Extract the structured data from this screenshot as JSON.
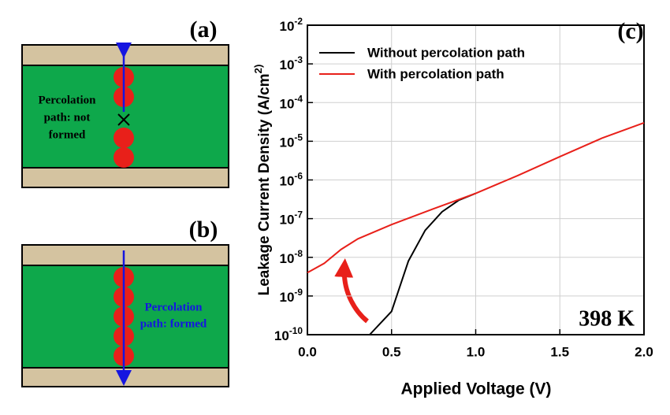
{
  "diagrams": {
    "a": {
      "label": "(a)",
      "text": [
        "Percolation",
        "path: not",
        "formed"
      ]
    },
    "b": {
      "label": "(b)",
      "text": [
        "Percolation",
        "path: formed"
      ]
    }
  },
  "chart_data": {
    "type": "line",
    "panel_label": "(c)",
    "annotation": "398 K",
    "x_label": "Applied Voltage (V)",
    "y_label": "Leakage Current Density (A/cm^2)",
    "log_y": true,
    "grid": true,
    "legend": "top",
    "xlim": [
      0,
      2
    ],
    "xticks": [
      {
        "value": 0,
        "label": "0.0"
      },
      0.5,
      {
        "value": 1,
        "label": "1.0"
      },
      1.5,
      {
        "value": 2,
        "label": "2.0"
      }
    ],
    "ylim": [
      1e-10,
      0.01
    ],
    "yticks": [
      {
        "value": 1e-10,
        "label": "10^-10"
      },
      {
        "value": 1e-09,
        "label": "10^-9"
      },
      {
        "value": 1e-08,
        "label": "10^-8"
      },
      {
        "value": 1e-07,
        "label": "10^-7"
      },
      {
        "value": 1e-06,
        "label": "10^-6"
      },
      {
        "value": 1e-05,
        "label": "10^-5"
      },
      {
        "value": 0.0001,
        "label": "10^-4"
      },
      {
        "value": 0.001,
        "label": "10^-3"
      },
      {
        "value": 0.01,
        "label": "10^-2"
      }
    ],
    "series": [
      {
        "name": "Without percolation path",
        "color": "#000000",
        "x": [
          0.37,
          0.5,
          0.6,
          0.7,
          0.8,
          0.9,
          1.0
        ],
        "values": [
          1e-10,
          4e-10,
          8e-09,
          5e-08,
          1.5e-07,
          3e-07,
          4.5e-07
        ]
      },
      {
        "name": "With percolation path",
        "color": "#e8201a",
        "x": [
          0,
          0.1,
          0.2,
          0.3,
          0.5,
          0.75,
          1.0,
          1.25,
          1.5,
          1.75,
          2.0
        ],
        "values": [
          4e-09,
          7e-09,
          1.6e-08,
          3e-08,
          7e-08,
          1.8e-07,
          4.5e-07,
          1.3e-06,
          4e-06,
          1.2e-05,
          3e-05
        ]
      }
    ]
  }
}
